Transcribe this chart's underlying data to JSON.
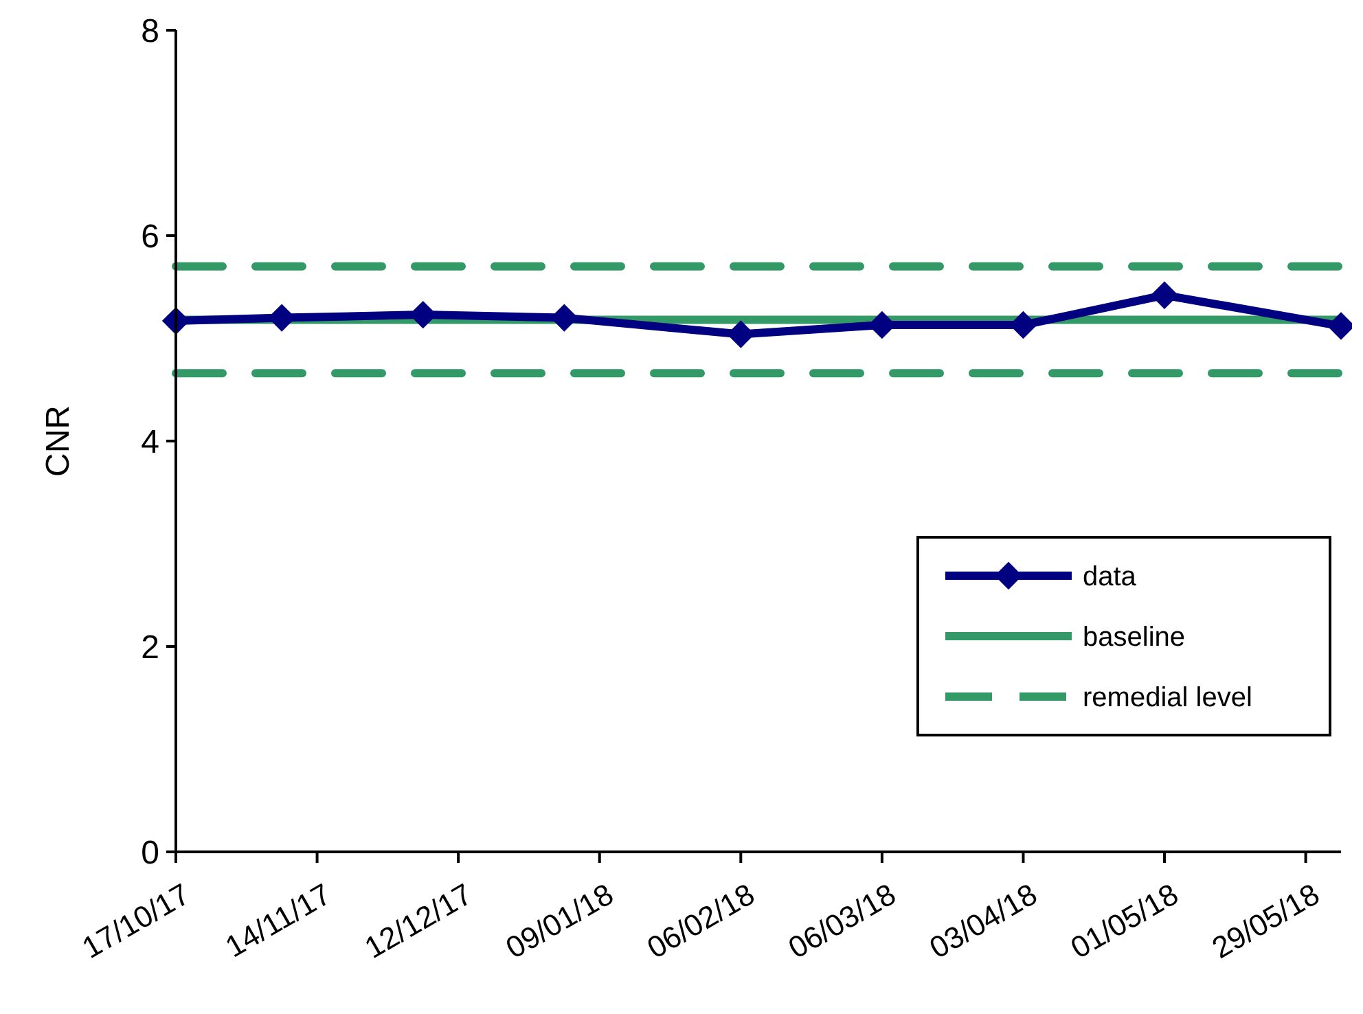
{
  "chart_data": {
    "type": "line",
    "ylabel": "CNR",
    "x": [
      "2017-10-17",
      "2017-11-07",
      "2017-12-05",
      "2018-01-02",
      "2018-02-06",
      "2018-03-06",
      "2018-04-03",
      "2018-05-01",
      "2018-06-05"
    ],
    "series": [
      {
        "name": "data",
        "color": "#000080",
        "values": [
          5.17,
          5.2,
          5.23,
          5.2,
          5.04,
          5.13,
          5.13,
          5.42,
          5.12
        ]
      }
    ],
    "marker": "diamond",
    "line_style": "solid",
    "ylim": [
      0,
      8
    ],
    "yticks": [
      0,
      2,
      4,
      6,
      8
    ],
    "xlim": [
      "2017-10-17",
      "2018-06-05"
    ],
    "xticks": [
      {
        "value": "2017-10-17",
        "label": "17/10/17"
      },
      {
        "value": "2017-11-14",
        "label": "14/11/17"
      },
      {
        "value": "2017-12-12",
        "label": "12/12/17"
      },
      {
        "value": "2018-01-09",
        "label": "09/01/18"
      },
      {
        "value": "2018-02-06",
        "label": "06/02/18"
      },
      {
        "value": "2018-03-06",
        "label": "06/03/18"
      },
      {
        "value": "2018-04-03",
        "label": "03/04/18"
      },
      {
        "value": "2018-05-01",
        "label": "01/05/18"
      },
      {
        "value": "2018-05-29",
        "label": "29/05/18"
      }
    ],
    "ref_lines": [
      {
        "axis": "y",
        "value": 5.18,
        "label": "baseline",
        "color": "#339966",
        "line_style": "solid"
      },
      {
        "axis": "y",
        "value": 5.7,
        "label": "remedial level",
        "color": "#339966",
        "line_style": "dashed"
      },
      {
        "axis": "y",
        "value": 4.66,
        "label": null,
        "color": "#339966",
        "line_style": "dashed"
      }
    ],
    "grid": false,
    "legend": "right"
  }
}
